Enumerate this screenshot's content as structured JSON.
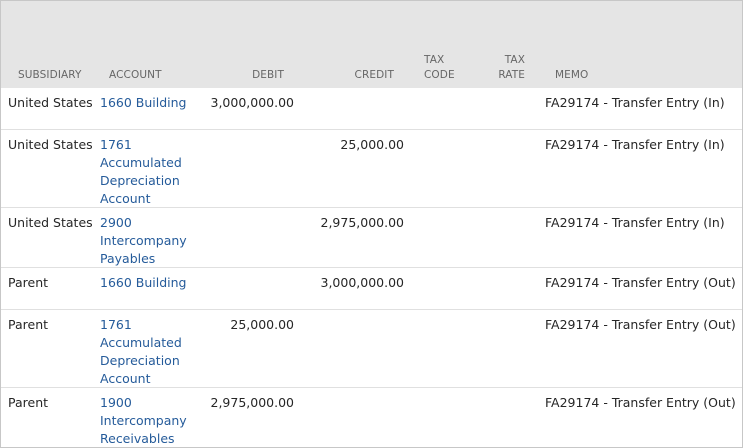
{
  "columns": {
    "subsidiary": "SUBSIDIARY",
    "account": "ACCOUNT",
    "debit": "DEBIT",
    "credit": "CREDIT",
    "tax_code_1": "TAX",
    "tax_code_2": "CODE",
    "tax_rate_1": "TAX",
    "tax_rate_2": "RATE",
    "memo": "MEMO"
  },
  "rows": [
    {
      "subsidiary": "United States",
      "account": [
        "1660 Building"
      ],
      "debit": "3,000,000.00",
      "credit": "",
      "memo": "FA29174 - Transfer Entry (In)"
    },
    {
      "subsidiary": "United States",
      "account": [
        "1761",
        "Accumulated",
        "Depreciation",
        "Account"
      ],
      "debit": "",
      "credit": "25,000.00",
      "memo": "FA29174 - Transfer Entry (In)"
    },
    {
      "subsidiary": "United States",
      "account": [
        "2900",
        "Intercompany",
        "Payables"
      ],
      "debit": "",
      "credit": "2,975,000.00",
      "memo": "FA29174 - Transfer Entry (In)"
    },
    {
      "subsidiary": "Parent",
      "account": [
        "1660 Building"
      ],
      "debit": "",
      "credit": "3,000,000.00",
      "memo": "FA29174 - Transfer Entry (Out)"
    },
    {
      "subsidiary": "Parent",
      "account": [
        "1761",
        "Accumulated",
        "Depreciation",
        "Account"
      ],
      "debit": "25,000.00",
      "credit": "",
      "memo": "FA29174 - Transfer Entry (Out)"
    },
    {
      "subsidiary": "Parent",
      "account": [
        "1900",
        "Intercompany",
        "Receivables"
      ],
      "debit": "2,975,000.00",
      "credit": "",
      "memo": "FA29174 - Transfer Entry (Out)"
    }
  ]
}
